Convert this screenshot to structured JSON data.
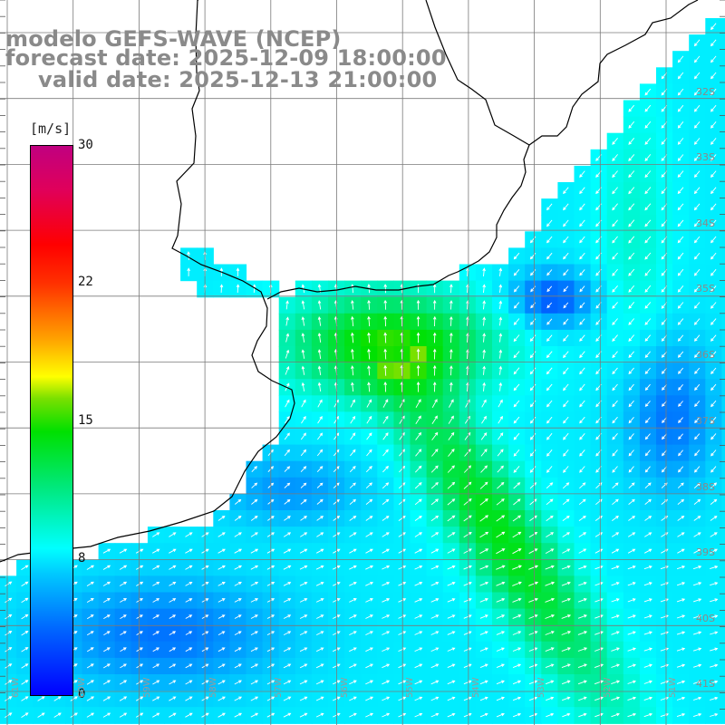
{
  "title": {
    "line1": "modelo GEFS-WAVE (NCEP)",
    "line2": "forecast date: 2025-12-09 18:00:00",
    "line3": "valid date: 2025-12-13 21:00:00"
  },
  "colorbar": {
    "unit": "[m/s]",
    "ticks": [
      "30",
      "22",
      "15",
      "8",
      "0"
    ],
    "range": [
      0,
      30
    ],
    "tick_values": [
      30,
      22,
      15,
      8,
      0
    ]
  },
  "lat_labels": [
    "32S",
    "33S",
    "34S",
    "35S",
    "36S",
    "37S",
    "38S",
    "39S",
    "40S",
    "41S"
  ],
  "lon_labels": [
    "61W",
    "60W",
    "59W",
    "58W",
    "57W",
    "56W",
    "55W",
    "54W",
    "53W",
    "52W",
    "51W"
  ],
  "colors": {
    "land": "#ffffff",
    "grid": "#7a7a7a",
    "coast": "#000000",
    "arrow": "#ffffff",
    "title": "#8a8a8a"
  }
}
